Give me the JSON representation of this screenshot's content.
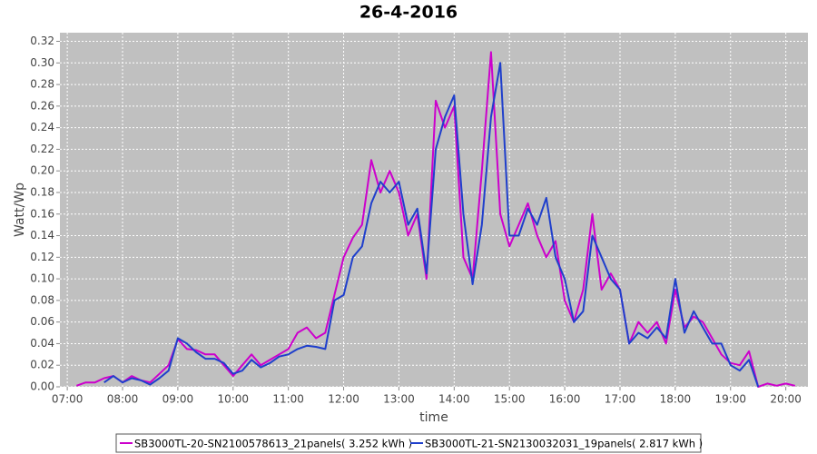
{
  "chart_data": {
    "type": "line",
    "title": "26-4-2016",
    "x_label": "time",
    "y_label": "Watt/Wp",
    "x": [
      "07:00",
      "07:10",
      "07:20",
      "07:30",
      "07:40",
      "07:50",
      "08:00",
      "08:10",
      "08:20",
      "08:30",
      "08:40",
      "08:50",
      "09:00",
      "09:10",
      "09:20",
      "09:30",
      "09:40",
      "09:50",
      "10:00",
      "10:10",
      "10:20",
      "10:30",
      "10:40",
      "10:50",
      "11:00",
      "11:10",
      "11:20",
      "11:30",
      "11:40",
      "11:50",
      "12:00",
      "12:10",
      "12:20",
      "12:30",
      "12:40",
      "12:50",
      "13:00",
      "13:10",
      "13:20",
      "13:30",
      "13:40",
      "13:50",
      "14:00",
      "14:10",
      "14:20",
      "14:30",
      "14:40",
      "14:50",
      "15:00",
      "15:10",
      "15:20",
      "15:30",
      "15:40",
      "15:50",
      "16:00",
      "16:10",
      "16:20",
      "16:30",
      "16:40",
      "16:50",
      "17:00",
      "17:10",
      "17:20",
      "17:30",
      "17:40",
      "17:50",
      "18:00",
      "18:10",
      "18:20",
      "18:30",
      "18:40",
      "18:50",
      "19:00",
      "19:10",
      "19:20",
      "19:30",
      "19:40",
      "19:50",
      "20:00",
      "20:10"
    ],
    "series": [
      {
        "name": "SB3000TL-20-SN2100578613_21panels( 3.252 kWh )",
        "color": "#cc00cc",
        "values": [
          null,
          0.001,
          0.004,
          0.004,
          0.008,
          0.01,
          0.004,
          0.01,
          0.006,
          0.004,
          0.012,
          0.02,
          0.044,
          0.035,
          0.034,
          0.03,
          0.03,
          0.02,
          0.01,
          0.02,
          0.03,
          0.02,
          0.025,
          0.03,
          0.035,
          0.05,
          0.055,
          0.045,
          0.05,
          0.085,
          0.12,
          0.138,
          0.15,
          0.21,
          0.18,
          0.2,
          0.18,
          0.14,
          0.16,
          0.1,
          0.265,
          0.24,
          0.26,
          0.12,
          0.1,
          0.2,
          0.31,
          0.16,
          0.13,
          0.15,
          0.17,
          0.14,
          0.12,
          0.135,
          0.08,
          0.06,
          0.09,
          0.16,
          0.09,
          0.105,
          0.09,
          0.04,
          0.06,
          0.05,
          0.06,
          0.04,
          0.09,
          0.055,
          0.065,
          0.06,
          0.045,
          0.03,
          0.022,
          0.02,
          0.033,
          0.0,
          0.003,
          0.001,
          0.003,
          0.001
        ]
      },
      {
        "name": "SB3000TL-21-SN2130032031_19panels( 2.817 kWh )",
        "color": "#1f3fcc",
        "values": [
          null,
          null,
          null,
          null,
          0.004,
          0.01,
          0.004,
          0.008,
          0.006,
          0.002,
          0.008,
          0.015,
          0.045,
          0.04,
          0.032,
          0.026,
          0.026,
          0.022,
          0.012,
          0.015,
          0.025,
          0.018,
          0.022,
          0.028,
          0.03,
          0.035,
          0.038,
          0.037,
          0.035,
          0.08,
          0.085,
          0.12,
          0.13,
          0.17,
          0.19,
          0.18,
          0.19,
          0.15,
          0.165,
          0.105,
          0.22,
          0.25,
          0.27,
          0.16,
          0.095,
          0.15,
          0.25,
          0.3,
          0.14,
          0.14,
          0.165,
          0.15,
          0.175,
          0.12,
          0.1,
          0.06,
          0.07,
          0.14,
          0.12,
          0.1,
          0.09,
          0.04,
          0.05,
          0.045,
          0.055,
          0.045,
          0.1,
          0.05,
          0.07,
          0.055,
          0.04,
          0.04,
          0.02,
          0.015,
          0.025,
          0.0,
          null,
          null,
          null,
          null
        ]
      }
    ],
    "xlim": [
      "06:52",
      "20:24"
    ],
    "xticks": [
      "07:00",
      "08:00",
      "09:00",
      "10:00",
      "11:00",
      "12:00",
      "13:00",
      "14:00",
      "15:00",
      "16:00",
      "17:00",
      "18:00",
      "19:00",
      "20:00"
    ],
    "ylim": [
      0,
      0.328
    ],
    "yticks": [
      {
        "value": 0,
        "label": "0.00"
      },
      {
        "value": 0.02,
        "label": "0.02"
      },
      {
        "value": 0.04,
        "label": "0.04"
      },
      {
        "value": 0.06,
        "label": "0.06"
      },
      {
        "value": 0.08,
        "label": "0.08"
      },
      {
        "value": 0.1,
        "label": "0.10"
      },
      {
        "value": 0.12,
        "label": "0.12"
      },
      {
        "value": 0.14,
        "label": "0.14"
      },
      {
        "value": 0.16,
        "label": "0.16"
      },
      {
        "value": 0.18,
        "label": "0.18"
      },
      {
        "value": 0.2,
        "label": "0.20"
      },
      {
        "value": 0.22,
        "label": "0.22"
      },
      {
        "value": 0.24,
        "label": "0.24"
      },
      {
        "value": 0.26,
        "label": "0.26"
      },
      {
        "value": 0.28,
        "label": "0.28"
      },
      {
        "value": 0.3,
        "label": "0.30"
      },
      {
        "value": 0.32,
        "label": "0.32"
      }
    ],
    "grid": true,
    "legend": "bottom"
  }
}
